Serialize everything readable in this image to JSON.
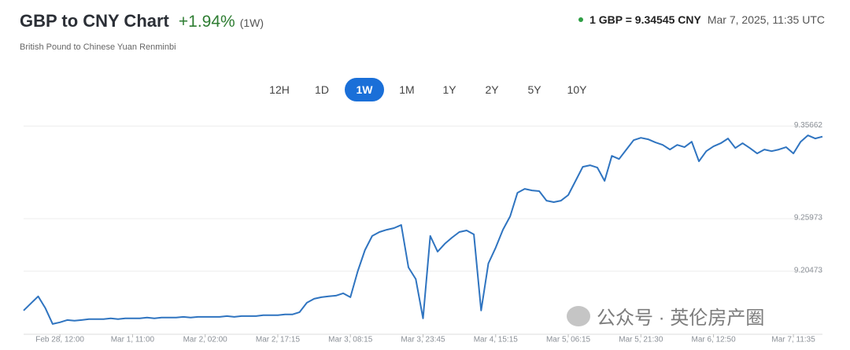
{
  "header": {
    "title": "GBP to CNY Chart",
    "change": "+1.94%",
    "period": "(1W)",
    "subtitle": "British Pound to Chinese Yuan Renminbi",
    "rate": "1 GBP = 9.34545 CNY",
    "timestamp": "Mar 7, 2025, 11:35 UTC"
  },
  "buttons": [
    "12H",
    "1D",
    "1W",
    "1M",
    "1Y",
    "2Y",
    "5Y",
    "10Y"
  ],
  "active_button": "1W",
  "watermark": "公众号 · 英伦房产圈",
  "chart_data": {
    "type": "line",
    "color": "#2f74c0",
    "categories": [
      null,
      null,
      null,
      null,
      null,
      "Feb 28, 12:00",
      null,
      null,
      null,
      null,
      null,
      null,
      null,
      null,
      null,
      "Mar 1, 11:00",
      null,
      null,
      null,
      null,
      null,
      null,
      null,
      null,
      null,
      "Mar 2, 02:00",
      null,
      null,
      null,
      null,
      null,
      null,
      null,
      null,
      null,
      "Mar 2, 17:15",
      null,
      null,
      null,
      null,
      null,
      null,
      null,
      null,
      null,
      "Mar 3, 08:15",
      null,
      null,
      null,
      null,
      null,
      null,
      null,
      null,
      null,
      "Mar 3, 23:45",
      null,
      null,
      null,
      null,
      null,
      null,
      null,
      null,
      null,
      "Mar 4, 15:15",
      null,
      null,
      null,
      null,
      null,
      null,
      null,
      null,
      null,
      "Mar 5, 06:15",
      null,
      null,
      null,
      null,
      null,
      null,
      null,
      null,
      null,
      "Mar 5, 21:30",
      null,
      null,
      null,
      null,
      null,
      null,
      null,
      null,
      null,
      "Mar 6, 12:50",
      null,
      null,
      null,
      null,
      null,
      null,
      null,
      null,
      null,
      null,
      "Mar 7, 11:35",
      null,
      null,
      null,
      null
    ],
    "values": [
      9.1637,
      9.1711,
      9.1785,
      9.1661,
      9.1497,
      9.1514,
      9.1538,
      9.153,
      9.1538,
      9.1547,
      9.1547,
      9.1547,
      9.1555,
      9.1547,
      9.1555,
      9.1555,
      9.1555,
      9.1563,
      9.1555,
      9.1563,
      9.1563,
      9.1563,
      9.1571,
      9.1563,
      9.1571,
      9.1571,
      9.1571,
      9.1571,
      9.1579,
      9.1571,
      9.1579,
      9.1579,
      9.1579,
      9.1588,
      9.1588,
      9.1588,
      9.1596,
      9.1596,
      9.162,
      9.1719,
      9.176,
      9.1776,
      9.1785,
      9.1793,
      9.1817,
      9.1776,
      9.2047,
      9.2269,
      9.2417,
      9.2458,
      9.2482,
      9.2499,
      9.2532,
      9.2088,
      9.1965,
      9.1555,
      9.2417,
      9.2253,
      9.2335,
      9.24,
      9.2458,
      9.2474,
      9.2433,
      9.1637,
      9.2129,
      9.2294,
      9.2482,
      9.2622,
      9.2868,
      9.2909,
      9.2893,
      9.2885,
      9.2786,
      9.277,
      9.2786,
      9.2844,
      9.2992,
      9.3139,
      9.3156,
      9.3131,
      9.2992,
      9.3254,
      9.3221,
      9.332,
      9.3418,
      9.3443,
      9.3427,
      9.3394,
      9.3369,
      9.332,
      9.3369,
      9.3345,
      9.3402,
      9.3197,
      9.3303,
      9.3353,
      9.3386,
      9.3435,
      9.3336,
      9.3386,
      9.3336,
      9.3279,
      9.332,
      9.3303,
      9.332,
      9.3345,
      9.3279,
      9.3402,
      9.3468,
      9.3435,
      9.3455
    ],
    "ylim": [
      9.143,
      9.365
    ],
    "yticks": [
      9.35662,
      9.25973,
      9.20473
    ],
    "grid": true
  }
}
